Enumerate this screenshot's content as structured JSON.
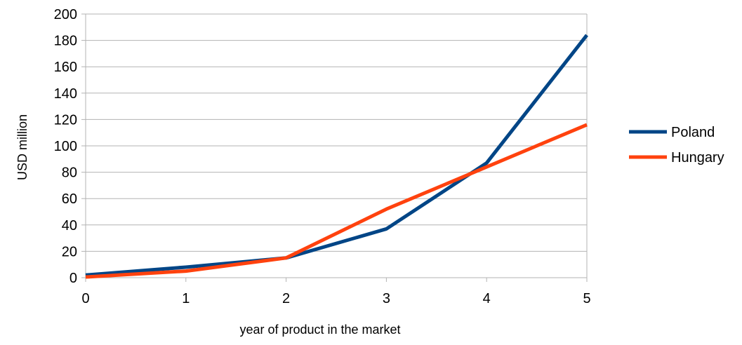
{
  "chart_data": {
    "type": "line",
    "title": "",
    "xlabel": "year of product in the market",
    "ylabel": "USD million",
    "x": [
      0,
      1,
      2,
      3,
      4,
      5
    ],
    "xlim": [
      0,
      5
    ],
    "ylim": [
      0,
      200
    ],
    "x_ticks": [
      "0",
      "1",
      "2",
      "3",
      "4",
      "5"
    ],
    "y_ticks": [
      "0",
      "20",
      "40",
      "60",
      "80",
      "100",
      "120",
      "140",
      "160",
      "180",
      "200"
    ],
    "grid": "horizontal",
    "legend_position": "right",
    "series": [
      {
        "name": "Poland",
        "color": "#004586",
        "values": [
          2,
          8,
          15,
          37,
          87,
          184
        ]
      },
      {
        "name": "Hungary",
        "color": "#ff420e",
        "values": [
          0.5,
          5,
          15,
          52,
          84,
          116
        ]
      }
    ]
  }
}
